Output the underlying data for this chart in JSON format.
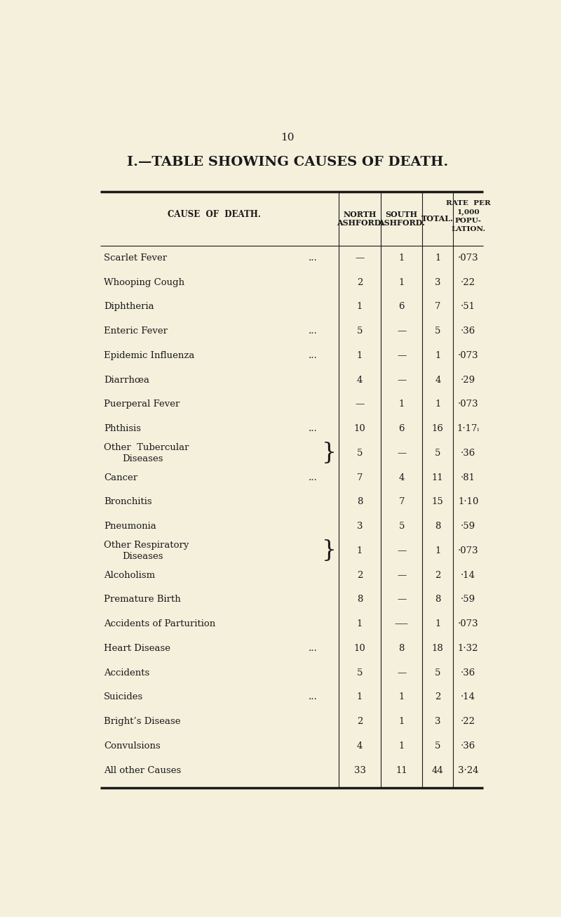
{
  "page_number": "10",
  "title": "I.—TABLE SHOWING CAUSES OF DEATH.",
  "bg_color": "#f5f0dc",
  "text_color": "#1a1a1a",
  "line_color": "#1a1a1a",
  "col_headers_line1": [
    "CAUSE OF DEATH.",
    "NORTH",
    "SOUTH",
    "TOTAL.",
    "RATE PER"
  ],
  "col_headers_line2": [
    "",
    "ASHFORD.",
    "ASHFORD.",
    "",
    "1,000"
  ],
  "col_headers_line3": [
    "",
    "",
    "",
    "",
    "POPU-"
  ],
  "col_headers_line4": [
    "",
    "",
    "",
    "",
    "LATION."
  ],
  "rows": [
    {
      "cause": "Scarlet Fever ...",
      "dots": "...",
      "north": "—",
      "south": "1",
      "total": "1",
      "rate": "·073",
      "brace": false,
      "two_line": false
    },
    {
      "cause": "Whooping Cough",
      "dots": "...",
      "north": "2",
      "south": "1",
      "total": "3",
      "rate": "·22",
      "brace": false,
      "two_line": false
    },
    {
      "cause": "Diphtheria",
      "dots": "...",
      "north": "1",
      "south": "6",
      "total": "7",
      "rate": "·51",
      "brace": false,
      "two_line": false
    },
    {
      "cause": "Enteric Fever ...",
      "dots": "...",
      "north": "5",
      "south": "—",
      "total": "5",
      "rate": "·36",
      "brace": false,
      "two_line": false
    },
    {
      "cause": "Epidemic Influenza ...",
      "dots": "...",
      "north": "1",
      "south": "—",
      "total": "1",
      "rate": "·073",
      "brace": false,
      "two_line": false
    },
    {
      "cause": "Diarrhœa",
      "dots": "...",
      "north": "4",
      "south": "—",
      "total": "4",
      "rate": "·29",
      "brace": false,
      "two_line": false
    },
    {
      "cause": "Puerperal Fever",
      "dots": "...",
      "north": "—",
      "south": "1",
      "total": "1",
      "rate": "·073",
      "brace": false,
      "two_line": false
    },
    {
      "cause": "Phthisis...",
      "dots": "...",
      "north": "10",
      "south": "6",
      "total": "16",
      "rate": "1·17ᵢ",
      "brace": false,
      "two_line": false
    },
    {
      "cause": "Other  Tubercular",
      "cause2": "Diseases",
      "dots": "",
      "north": "5",
      "south": "—",
      "total": "5",
      "rate": "·36",
      "brace": true,
      "two_line": true
    },
    {
      "cause": "Cancer ...",
      "dots": "...",
      "north": "7",
      "south": "4",
      "total": "11",
      "rate": "·81",
      "brace": false,
      "two_line": false
    },
    {
      "cause": "Bronchitis",
      "dots": "...",
      "north": "8",
      "south": "7",
      "total": "15",
      "rate": "1·10",
      "brace": false,
      "two_line": false
    },
    {
      "cause": "Pneumonia",
      "dots": "...",
      "north": "3",
      "south": "5",
      "total": "8",
      "rate": "·59",
      "brace": false,
      "two_line": false
    },
    {
      "cause": "Other Respiratory",
      "cause2": "Diseases",
      "dots": "",
      "north": "1",
      "south": "—",
      "total": "1",
      "rate": "·073",
      "brace": true,
      "two_line": true
    },
    {
      "cause": "Alcoholism",
      "dots": "...",
      "north": "2",
      "south": "—",
      "total": "2",
      "rate": "·14",
      "brace": false,
      "two_line": false
    },
    {
      "cause": "Premature Birth",
      "dots": "...",
      "north": "8",
      "south": "—",
      "total": "8",
      "rate": "·59",
      "brace": false,
      "two_line": false
    },
    {
      "cause": "Accidents of Parturition",
      "dots": "",
      "north": "1",
      "south": "—–",
      "total": "1",
      "rate": "·073",
      "brace": false,
      "two_line": false
    },
    {
      "cause": "Heart Disease ...",
      "dots": "...",
      "north": "10",
      "south": "8",
      "total": "18",
      "rate": "1·32",
      "brace": false,
      "two_line": false
    },
    {
      "cause": "Accidents",
      "dots": "...",
      "north": "5",
      "south": "—",
      "total": "5",
      "rate": "·36",
      "brace": false,
      "two_line": false
    },
    {
      "cause": "Suicides...",
      "dots": "...",
      "north": "1",
      "south": "1",
      "total": "2",
      "rate": "·14",
      "brace": false,
      "two_line": false
    },
    {
      "cause": "Bright’s Disease",
      "dots": "...",
      "north": "2",
      "south": "1",
      "total": "3",
      "rate": "·22",
      "brace": false,
      "two_line": false
    },
    {
      "cause": "Convulsions",
      "dots": "...",
      "north": "4",
      "south": "1",
      "total": "5",
      "rate": "·36",
      "brace": false,
      "two_line": false
    },
    {
      "cause": "All other Causes",
      "dots": "...",
      "north": "33",
      "south": "11",
      "total": "44",
      "rate": "3·24",
      "brace": false,
      "two_line": false
    }
  ]
}
